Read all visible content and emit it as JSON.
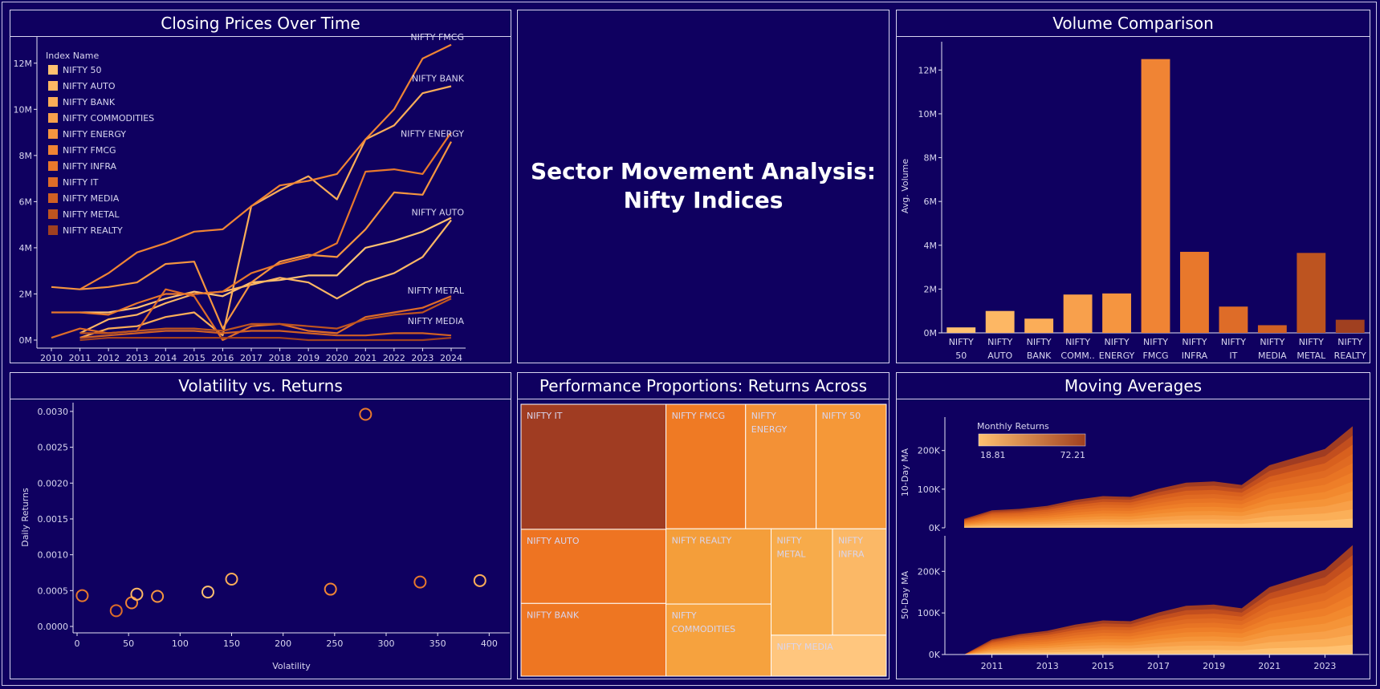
{
  "dashboard": {
    "title_line1": "Sector Movement Analysis:",
    "title_line2": "Nifty Indices"
  },
  "panels": {
    "closing": {
      "title": "Closing Prices Over Time"
    },
    "volume": {
      "title": "Volume Comparison"
    },
    "volatility": {
      "title": "Volatility vs. Returns"
    },
    "treemap": {
      "title": "Performance Proportions: Returns Across Indices"
    },
    "moving": {
      "title": "Moving Averages"
    }
  },
  "palette": {
    "background": "#0f0060",
    "light": "#ffc170",
    "dark": "#a04020"
  },
  "chart_data": [
    {
      "id": "closing",
      "type": "line",
      "legend_title": "Index Name",
      "x": [
        2010,
        2011,
        2012,
        2013,
        2014,
        2015,
        2016,
        2017,
        2018,
        2019,
        2020,
        2021,
        2022,
        2023,
        2024
      ],
      "ylim": [
        0,
        13000000
      ],
      "ytick_labels": [
        "0M",
        "2M",
        "4M",
        "6M",
        "8M",
        "10M",
        "12M"
      ],
      "yticks": [
        0,
        2000000,
        4000000,
        6000000,
        8000000,
        10000000,
        12000000
      ],
      "series": [
        {
          "name": "NIFTY 50",
          "color": "#ffc170",
          "values": [
            null,
            1200000,
            1200000,
            1400000,
            1800000,
            2100000,
            1900000,
            2500000,
            2600000,
            2800000,
            2800000,
            4000000,
            4300000,
            4700000,
            5300000
          ]
        },
        {
          "name": "NIFTY AUTO",
          "color": "#fdb764",
          "values": [
            null,
            300000,
            900000,
            1100000,
            1600000,
            2000000,
            2100000,
            2400000,
            2700000,
            2500000,
            1800000,
            2500000,
            2900000,
            3600000,
            5200000
          ]
        },
        {
          "name": "NIFTY BANK",
          "color": "#fbad58",
          "values": [
            null,
            100000,
            500000,
            600000,
            1000000,
            1200000,
            200000,
            5800000,
            6500000,
            7100000,
            6100000,
            8700000,
            9300000,
            10700000,
            11000000
          ]
        },
        {
          "name": "NIFTY COMMODITIES",
          "color": "#f8a04c",
          "values": [
            null,
            null,
            null,
            null,
            null,
            null,
            null,
            null,
            null,
            null,
            null,
            null,
            null,
            null,
            null
          ]
        },
        {
          "name": "NIFTY ENERGY",
          "color": "#f59540",
          "values": [
            2300000,
            2200000,
            2300000,
            2500000,
            3300000,
            3400000,
            500000,
            2500000,
            3400000,
            3700000,
            3600000,
            4800000,
            6400000,
            6300000,
            8600000
          ]
        },
        {
          "name": "NIFTY FMCG",
          "color": "#f08434",
          "values": [
            null,
            2200000,
            2900000,
            3800000,
            4200000,
            4700000,
            4800000,
            5800000,
            6700000,
            6900000,
            7200000,
            8700000,
            10000000,
            12200000,
            12800000
          ]
        },
        {
          "name": "NIFTY INFRA",
          "color": "#e8782c",
          "values": [
            1200000,
            1200000,
            1100000,
            1600000,
            2000000,
            2000000,
            2100000,
            2900000,
            3300000,
            3600000,
            4200000,
            7300000,
            7400000,
            7200000,
            9000000
          ]
        },
        {
          "name": "NIFTY IT",
          "color": "#de6c28",
          "values": [
            100000,
            500000,
            300000,
            400000,
            2200000,
            1900000,
            0,
            600000,
            700000,
            400000,
            300000,
            1000000,
            1200000,
            1400000,
            1900000
          ]
        },
        {
          "name": "NIFTY MEDIA",
          "color": "#d06024",
          "values": [
            null,
            100000,
            200000,
            300000,
            400000,
            400000,
            300000,
            400000,
            400000,
            300000,
            200000,
            200000,
            300000,
            300000,
            200000
          ]
        },
        {
          "name": "NIFTY METAL",
          "color": "#bd5420",
          "values": [
            null,
            300000,
            300000,
            400000,
            500000,
            500000,
            400000,
            700000,
            700000,
            600000,
            500000,
            900000,
            1100000,
            1200000,
            1800000
          ]
        },
        {
          "name": "NIFTY REALTY",
          "color": "#a04020",
          "values": [
            null,
            0,
            100000,
            100000,
            100000,
            100000,
            100000,
            100000,
            100000,
            0,
            0,
            0,
            0,
            0,
            100000
          ]
        }
      ],
      "end_labels": [
        "NIFTY FMCG",
        "NIFTY BANK",
        "NIFTY ENERGY",
        "NIFTY AUTO",
        "NIFTY METAL",
        "NIFTY MEDIA"
      ]
    },
    {
      "id": "volume",
      "type": "bar",
      "ylabel": "Avg. Volume",
      "ylim": [
        0,
        13000000
      ],
      "yticks": [
        0,
        2000000,
        4000000,
        6000000,
        8000000,
        10000000,
        12000000
      ],
      "ytick_labels": [
        "0M",
        "2M",
        "4M",
        "6M",
        "8M",
        "10M",
        "12M"
      ],
      "categories": [
        [
          "NIFTY",
          "50"
        ],
        [
          "NIFTY",
          "AUTO"
        ],
        [
          "NIFTY",
          "BANK"
        ],
        [
          "NIFTY",
          "COMM.."
        ],
        [
          "NIFTY",
          "ENERGY"
        ],
        [
          "NIFTY",
          "FMCG"
        ],
        [
          "NIFTY",
          "INFRA"
        ],
        [
          "NIFTY",
          "IT"
        ],
        [
          "NIFTY",
          "MEDIA"
        ],
        [
          "NIFTY",
          "METAL"
        ],
        [
          "NIFTY",
          "REALTY"
        ]
      ],
      "values": [
        250000,
        1000000,
        650000,
        1750000,
        1800000,
        12500000,
        3700000,
        1200000,
        350000,
        3650000,
        600000
      ],
      "colors": [
        "#ffc170",
        "#fdb764",
        "#fbad58",
        "#f8a04c",
        "#f59540",
        "#f08434",
        "#e8782c",
        "#de6c28",
        "#d06024",
        "#bd5420",
        "#a04020"
      ]
    },
    {
      "id": "volatility",
      "type": "scatter",
      "xlabel": "Volatility",
      "ylabel": "Daily Returns",
      "xlim": [
        0,
        420
      ],
      "ylim": [
        0,
        0.0031
      ],
      "xticks": [
        0,
        50,
        100,
        150,
        200,
        250,
        300,
        350,
        400
      ],
      "yticks": [
        0,
        0.0005,
        0.001,
        0.0015,
        0.002,
        0.0025,
        0.003
      ],
      "ytick_labels": [
        "0.0000",
        "0.0005",
        "0.0010",
        "0.0015",
        "0.0020",
        "0.0025",
        "0.0030"
      ],
      "points": [
        {
          "x": 5,
          "y": 0.00043,
          "color": "#e8782c"
        },
        {
          "x": 38,
          "y": 0.00022,
          "color": "#de6c28"
        },
        {
          "x": 53,
          "y": 0.00033,
          "color": "#f08434"
        },
        {
          "x": 58,
          "y": 0.00045,
          "color": "#fdb764"
        },
        {
          "x": 78,
          "y": 0.00042,
          "color": "#f59540"
        },
        {
          "x": 127,
          "y": 0.00048,
          "color": "#ffc170"
        },
        {
          "x": 150,
          "y": 0.00066,
          "color": "#fbad58"
        },
        {
          "x": 246,
          "y": 0.00052,
          "color": "#f08434"
        },
        {
          "x": 280,
          "y": 0.00296,
          "color": "#e8782c"
        },
        {
          "x": 333,
          "y": 0.00062,
          "color": "#e8782c"
        },
        {
          "x": 391,
          "y": 0.00064,
          "color": "#fbad58"
        }
      ]
    },
    {
      "id": "treemap",
      "type": "table",
      "tiles": [
        {
          "name": "NIFTY IT",
          "label": [
            "NIFTY IT"
          ],
          "value": 72.21,
          "color": "#a03c22"
        },
        {
          "name": "NIFTY FMCG",
          "label": [
            "NIFTY FMCG"
          ],
          "value": 39.5,
          "color": "#ef7a24"
        },
        {
          "name": "NIFTY ENERGY",
          "label": [
            "NIFTY",
            "ENERGY"
          ],
          "value": 35.0,
          "color": "#f39136"
        },
        {
          "name": "NIFTY 50",
          "label": [
            "NIFTY 50"
          ],
          "value": 34.8,
          "color": "#f59838"
        },
        {
          "name": "NIFTY AUTO",
          "label": [
            "NIFTY AUTO"
          ],
          "value": 42.8,
          "color": "#ee7422"
        },
        {
          "name": "NIFTY BANK",
          "label": [
            "NIFTY BANK"
          ],
          "value": 42.0,
          "color": "#ee7622"
        },
        {
          "name": "NIFTY REALTY",
          "label": [
            "NIFTY REALTY"
          ],
          "value": 31.5,
          "color": "#f49e3a"
        },
        {
          "name": "NIFTY COMMODITIES",
          "label": [
            "NIFTY",
            "COMMODITIES"
          ],
          "value": 30.2,
          "color": "#f6a23e"
        },
        {
          "name": "NIFTY METAL",
          "label": [
            "NIFTY",
            "METAL"
          ],
          "value": 26.0,
          "color": "#f7ab4a"
        },
        {
          "name": "NIFTY INFRA",
          "label": [
            "NIFTY",
            "INFRA"
          ],
          "value": 22.8,
          "color": "#fbb866"
        },
        {
          "name": "NIFTY MEDIA",
          "label": [
            "NIFTY MEDIA"
          ],
          "value": 18.81,
          "color": "#ffc67e"
        }
      ]
    },
    {
      "id": "moving",
      "type": "area",
      "legend_title": "Monthly Returns",
      "legend_min": "18.81",
      "legend_max": "72.21",
      "x": [
        2010,
        2011,
        2012,
        2013,
        2014,
        2015,
        2016,
        2017,
        2018,
        2019,
        2020,
        2021,
        2022,
        2023,
        2024
      ],
      "xtick_labels": [
        "2011",
        "2013",
        "2015",
        "2017",
        "2019",
        "2021",
        "2023"
      ],
      "ylim": [
        0,
        270000
      ],
      "yticks": [
        0,
        100000,
        200000
      ],
      "ytick_labels": [
        "0K",
        "100K",
        "200K"
      ],
      "colors": [
        "#a03c22",
        "#c24e1e",
        "#d8601e",
        "#e06a22",
        "#e87424",
        "#ee7e28",
        "#f2892e",
        "#f59438",
        "#f8a048",
        "#fbaf58",
        "#ffc170"
      ],
      "panels": [
        {
          "ylabel": "10-Day MA",
          "totals": [
            23000,
            45000,
            49000,
            57000,
            72000,
            82000,
            80000,
            101000,
            117000,
            120000,
            111000,
            162000,
            183000,
            204000,
            263000
          ]
        },
        {
          "ylabel": "50-Day MA",
          "totals": [
            0,
            36000,
            49000,
            57000,
            72000,
            82000,
            80000,
            101000,
            117000,
            120000,
            111000,
            162000,
            183000,
            204000,
            263000
          ]
        }
      ]
    }
  ]
}
